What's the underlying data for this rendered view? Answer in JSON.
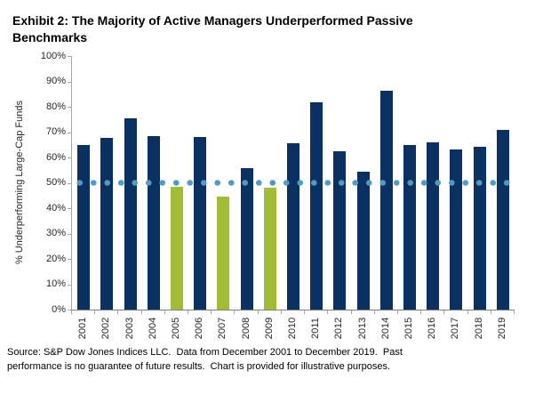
{
  "title": "Exhibit 2: The Majority of Active Managers Underperformed Passive Benchmarks",
  "source": {
    "line1": "Source: S&P Dow Jones Indices LLC.  Data from December 2001 to December 2019.  Past",
    "line2": "performance is no guarantee of future results.  Chart is provided for illustrative purposes."
  },
  "chart_data": {
    "type": "bar",
    "title": "Exhibit 2: The Majority of Active Managers Underperformed Passive Benchmarks",
    "xlabel": "",
    "ylabel": "% Underperforming Large-Cap Funds",
    "ylim": [
      0,
      100
    ],
    "y_ticks": [
      "0%",
      "10%",
      "20%",
      "30%",
      "40%",
      "50%",
      "60%",
      "70%",
      "80%",
      "90%",
      "100%"
    ],
    "grid": false,
    "legend_position": "none",
    "categories": [
      "2001",
      "2002",
      "2003",
      "2004",
      "2005",
      "2006",
      "2007",
      "2008",
      "2009",
      "2010",
      "2011",
      "2012",
      "2013",
      "2014",
      "2015",
      "2016",
      "2017",
      "2018",
      "2019"
    ],
    "values": [
      65.0,
      67.6,
      75.3,
      68.6,
      48.4,
      68.1,
      44.5,
      55.8,
      48.0,
      65.5,
      81.8,
      62.5,
      54.5,
      86.4,
      65.0,
      66.0,
      63.0,
      64.3,
      70.8
    ],
    "reference_line": {
      "value": 50,
      "style": "dotted"
    },
    "colors": {
      "bar_above_50": "#0A3161",
      "bar_below_50": "#A1BC36",
      "reference_dot": "#529AC6",
      "axis": "#A6A6A6"
    }
  }
}
